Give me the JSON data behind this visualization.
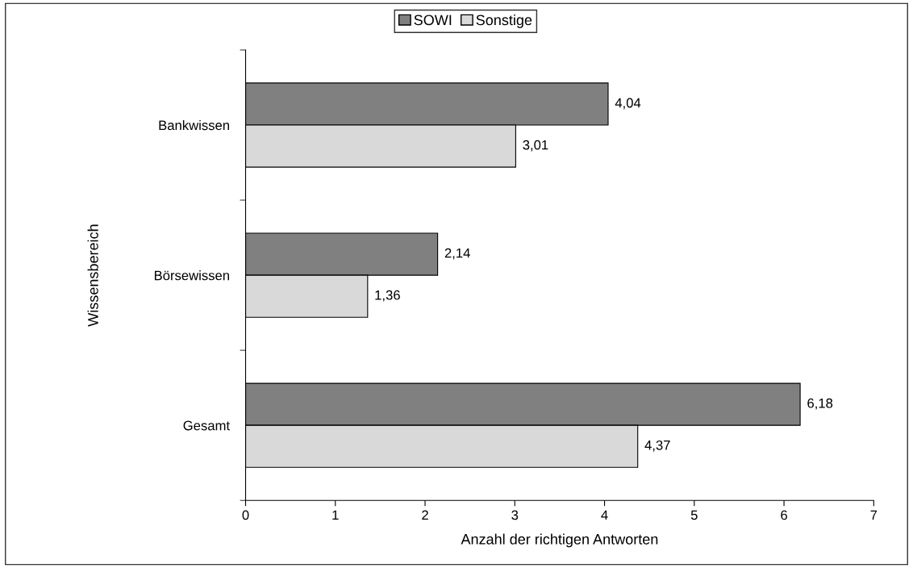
{
  "chart_data": {
    "type": "bar",
    "orientation": "horizontal",
    "xlabel": "Anzahl der richtigen Antworten",
    "ylabel": "Wissensbereich",
    "categories": [
      "Bankwissen",
      "Börsewissen",
      "Gesamt"
    ],
    "series": [
      {
        "name": "SOWI",
        "color": "#808080",
        "values": [
          4.04,
          2.14,
          6.18
        ],
        "value_labels": [
          "4,04",
          "2,14",
          "6,18"
        ]
      },
      {
        "name": "Sonstige",
        "color": "#d9d9d9",
        "values": [
          3.01,
          1.36,
          4.37
        ],
        "value_labels": [
          "3,01",
          "1,36",
          "4,37"
        ]
      }
    ],
    "xlim": [
      0,
      7
    ],
    "xticks": [
      0,
      1,
      2,
      3,
      4,
      5,
      6,
      7
    ],
    "grid": false,
    "legend": "top"
  }
}
